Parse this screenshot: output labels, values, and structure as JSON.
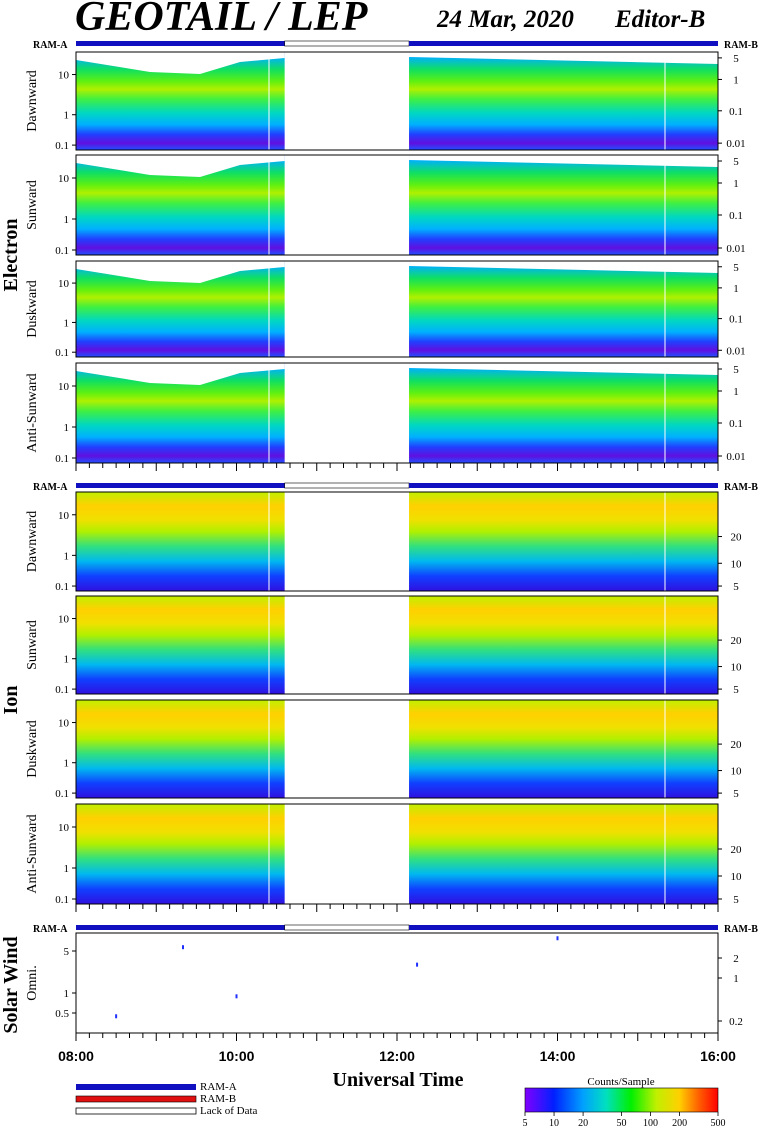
{
  "header": {
    "title": "GEOTAIL / LEP",
    "date": "24 Mar, 2020",
    "editor": "Editor-B"
  },
  "xaxis": {
    "label": "Universal Time",
    "start_hour": 8,
    "end_hour": 16,
    "ticks": [
      "08:00",
      "10:00",
      "12:00",
      "14:00",
      "16:00"
    ],
    "gap_start_hour": 10.6,
    "gap_end_hour": 12.15
  },
  "ram": {
    "a": "RAM-A",
    "b": "RAM-B"
  },
  "groups": [
    {
      "label": "Electron",
      "panels": [
        "Dawnward",
        "Sunward",
        "Duskward",
        "Anti-Sunward"
      ],
      "left_ticks": [
        "10",
        "1",
        "0.1"
      ],
      "right_ticks": [
        "5",
        "1",
        "0.1",
        "0.01"
      ]
    },
    {
      "label": "Ion",
      "panels": [
        "Dawnward",
        "Sunward",
        "Duskward",
        "Anti-Sunward"
      ],
      "left_ticks": [
        "10",
        "1",
        "0.1"
      ],
      "right_ticks": [
        "20",
        "10",
        "5"
      ]
    },
    {
      "label": "Solar Wind",
      "panels": [
        "Omni."
      ],
      "left_ticks": [
        "5",
        "1",
        "0.5"
      ],
      "right_ticks": [
        "2",
        "1",
        "0.2"
      ]
    }
  ],
  "legend": {
    "ram_a": "RAM-A",
    "ram_b": "RAM-B",
    "lack": "Lack of Data"
  },
  "colorbar": {
    "title": "Counts/Sample",
    "ticks": [
      "5",
      "10",
      "20",
      "50",
      "100",
      "200",
      "500"
    ]
  },
  "colors": {
    "ram_a": "#1010c0",
    "ram_b": "#e01010"
  },
  "chart_data": {
    "type": "heatmap",
    "title": "GEOTAIL / LEP",
    "xlabel": "Universal Time",
    "x_range_hours": [
      8,
      16
    ],
    "data_gap_hours": [
      10.6,
      12.15
    ],
    "colorbar_range": [
      5,
      500
    ],
    "colorbar_scale": "log",
    "solar_wind_points": [
      {
        "time": "08:30",
        "value": 0.5
      },
      {
        "time": "09:20",
        "value": 5.5
      },
      {
        "time": "10:00",
        "value": 1.0
      },
      {
        "time": "12:15",
        "value": 3.0
      },
      {
        "time": "14:00",
        "value": 7.5
      }
    ]
  }
}
